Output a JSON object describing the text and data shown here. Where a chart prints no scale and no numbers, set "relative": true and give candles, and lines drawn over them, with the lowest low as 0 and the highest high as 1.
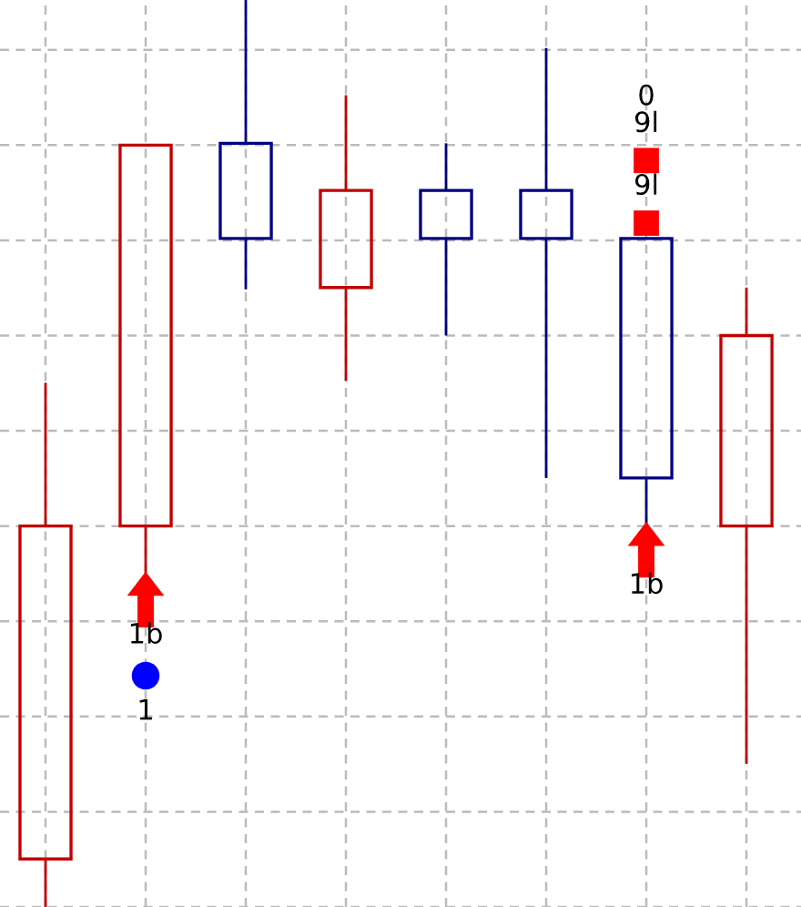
{
  "chart_data": {
    "type": "candlestick",
    "relative": true,
    "categories": [
      null,
      null,
      null,
      null,
      null,
      null,
      null,
      null
    ],
    "ohlc": [
      [
        0.053,
        0.578,
        0.0,
        0.42
      ],
      [
        0.42,
        0.84,
        0.364,
        0.84
      ],
      [
        0.842,
        1.0,
        0.681,
        0.737
      ],
      [
        0.683,
        0.895,
        0.58,
        0.79
      ],
      [
        0.79,
        0.842,
        0.63,
        0.737
      ],
      [
        0.79,
        0.947,
        0.473,
        0.737
      ],
      [
        0.737,
        0.737,
        0.42,
        0.473
      ],
      [
        0.42,
        0.683,
        0.158,
        0.63
      ]
    ],
    "colors": [
      "#c00000",
      "#c00000",
      "#000080",
      "#c00000",
      "#000080",
      "#000080",
      "#000080",
      "#c00000"
    ],
    "series": [
      {
        "type": "scatter",
        "marker": "triangle",
        "color": "#ff0000",
        "values": [
          null,
          0.339,
          null,
          null,
          null,
          null,
          0.394,
          null
        ]
      },
      {
        "type": "scatter",
        "marker": "circle",
        "color": "#0000ff",
        "values": [
          null,
          0.255,
          null,
          null,
          null,
          null,
          null,
          null
        ]
      },
      {
        "type": "scatter",
        "marker": "square",
        "color": "#ff0000",
        "values": [
          null,
          null,
          null,
          null,
          null,
          null,
          0.754,
          null
        ]
      },
      {
        "type": "scatter",
        "marker": "square",
        "color": "#ff0000",
        "values": [
          null,
          null,
          null,
          null,
          null,
          null,
          0.823,
          null
        ]
      }
    ],
    "annotations": [
      {
        "text": "1b",
        "y": 0.339
      },
      {
        "text": "1",
        "y": 0.255
      },
      {
        "text": "1b",
        "y": 0.394
      },
      {
        "text": "9l",
        "y": 0.754
      },
      {
        "text": "0\n9l",
        "y": 0.823
      }
    ],
    "grid": true
  }
}
